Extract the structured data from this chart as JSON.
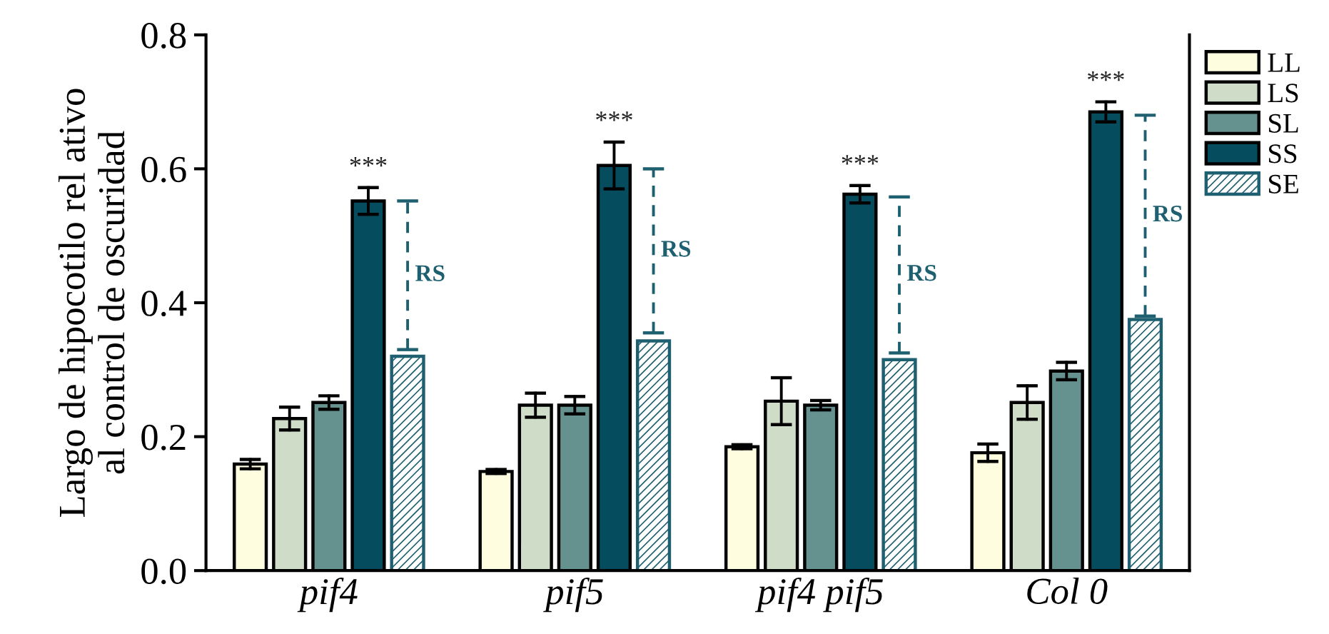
{
  "chart_data": {
    "type": "bar",
    "ylabel": "Largo de hipocotilo rel ativo\nal control de oscuridad",
    "categories": [
      "pif4",
      "pif5",
      "pif4 pif5",
      "Col 0"
    ],
    "series": [
      {
        "name": "LL",
        "color": "#fffde0",
        "values": [
          0.159,
          0.148,
          0.185,
          0.176
        ],
        "errors": [
          0.007,
          0.003,
          0.003,
          0.013
        ]
      },
      {
        "name": "LS",
        "color": "#cfdcc8",
        "values": [
          0.227,
          0.247,
          0.253,
          0.251
        ],
        "errors": [
          0.017,
          0.018,
          0.035,
          0.025
        ]
      },
      {
        "name": "SL",
        "color": "#65918f",
        "values": [
          0.251,
          0.247,
          0.247,
          0.298
        ],
        "errors": [
          0.01,
          0.013,
          0.007,
          0.013
        ]
      },
      {
        "name": "SS",
        "color": "#054d5e",
        "values": [
          0.552,
          0.605,
          0.562,
          0.685
        ],
        "errors": [
          0.02,
          0.035,
          0.013,
          0.015
        ]
      },
      {
        "name": "SE",
        "color": "#1f6070",
        "values": [
          0.32,
          0.343,
          0.315,
          0.375
        ],
        "errors": [
          [
            0.33,
            0.552
          ],
          [
            0.355,
            0.6
          ],
          [
            0.325,
            0.558
          ],
          [
            0.38,
            0.68
          ]
        ],
        "line_style": "dashed"
      }
    ],
    "annotations": [
      "***",
      "***",
      "***",
      "***",
      "RS",
      "RS",
      "RS",
      "RS"
    ],
    "ylim": [
      0,
      0.8
    ],
    "yticks": [
      {
        "value": 0,
        "label": "0.0"
      },
      0.2,
      0.4,
      0.6,
      0.8
    ],
    "grid": false,
    "legend": "top right"
  }
}
